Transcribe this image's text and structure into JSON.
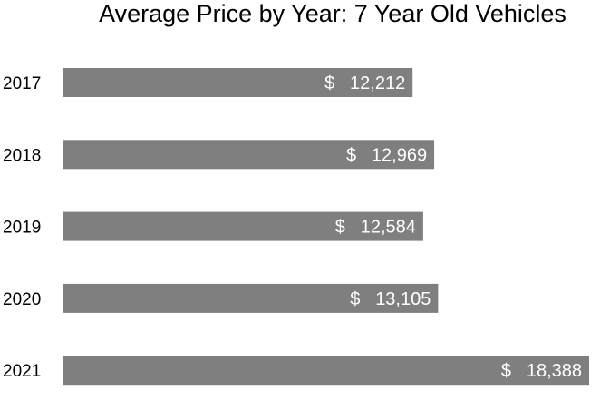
{
  "chart_data": {
    "type": "bar",
    "orientation": "horizontal",
    "title": "Average Price by Year: 7 Year Old Vehicles",
    "categories": [
      "2017",
      "2018",
      "2019",
      "2020",
      "2021"
    ],
    "values": [
      12212,
      12969,
      12584,
      13105,
      18388
    ],
    "value_labels": [
      {
        "currency": "$",
        "amount": "12,212"
      },
      {
        "currency": "$",
        "amount": "12,969"
      },
      {
        "currency": "$",
        "amount": "12,584"
      },
      {
        "currency": "$",
        "amount": "13,105"
      },
      {
        "currency": "$",
        "amount": "18,388"
      }
    ],
    "xlabel": "",
    "ylabel": "",
    "xlim": [
      0,
      18388
    ],
    "grid": false,
    "legend": "none",
    "colors": {
      "bar": "#7f7f7f",
      "value_label": "#ffffff",
      "text": "#000000"
    }
  }
}
